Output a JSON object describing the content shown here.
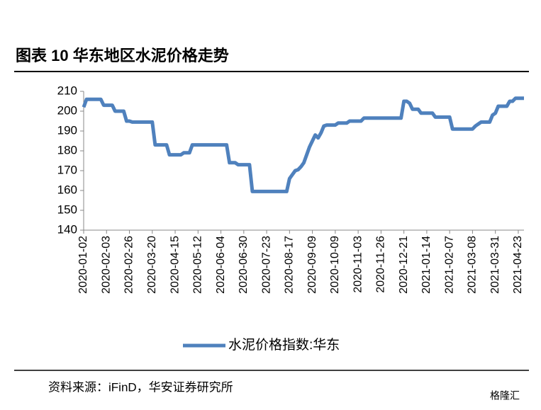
{
  "chart_data": {
    "type": "line",
    "title": "图表 10  华东地区水泥价格走势",
    "source": "资料来源：iFinD，华安证券研究所",
    "watermark": "格隆汇",
    "categories": [
      "2020-01-02",
      null,
      null,
      null,
      null,
      null,
      null,
      null,
      "2020-02-03",
      null,
      null,
      null,
      null,
      null,
      null,
      null,
      "2020-02-26",
      null,
      null,
      null,
      null,
      null,
      null,
      null,
      "2020-03-20",
      null,
      null,
      null,
      null,
      null,
      null,
      null,
      "2020-04-15",
      null,
      null,
      null,
      null,
      null,
      null,
      null,
      "2020-05-12",
      null,
      null,
      null,
      null,
      null,
      null,
      null,
      "2020-06-04",
      null,
      null,
      null,
      null,
      null,
      null,
      null,
      "2020-06-30",
      null,
      null,
      null,
      null,
      null,
      null,
      null,
      "2020-07-23",
      null,
      null,
      null,
      null,
      null,
      null,
      null,
      "2020-08-17",
      null,
      null,
      null,
      null,
      null,
      null,
      null,
      "2020-09-09",
      null,
      null,
      null,
      null,
      null,
      null,
      null,
      "2020-10-09",
      null,
      null,
      null,
      null,
      null,
      null,
      null,
      "2020-11-03",
      null,
      null,
      null,
      null,
      null,
      null,
      null,
      "2020-11-26",
      null,
      null,
      null,
      null,
      null,
      null,
      null,
      "2020-12-21",
      null,
      null,
      null,
      null,
      null,
      null,
      null,
      "2021-01-14",
      null,
      null,
      null,
      null,
      null,
      null,
      null,
      "2021-02-07",
      null,
      null,
      null,
      null,
      null,
      null,
      null,
      "2021-03-08",
      null,
      null,
      null,
      null,
      null,
      null,
      null,
      "2021-03-31",
      null,
      null,
      null,
      null,
      null,
      null,
      null,
      "2021-04-23",
      null,
      null
    ],
    "series": [
      {
        "name": "水泥价格指数:华东",
        "color": "#4f81bd",
        "values": [
          202,
          206,
          206,
          206,
          206,
          206,
          206,
          203,
          203,
          203,
          203,
          200,
          200,
          200,
          200,
          195,
          195,
          194.5,
          194.5,
          194.5,
          194.5,
          194.5,
          194.5,
          194.5,
          194.5,
          183,
          183,
          183,
          183,
          183,
          178,
          178,
          178,
          178,
          178,
          179,
          179,
          179,
          183,
          183,
          183,
          183,
          183,
          183,
          183,
          183,
          183,
          183,
          183,
          183,
          183,
          174,
          174,
          174,
          173,
          173,
          173,
          173,
          173,
          159.5,
          159.5,
          159.5,
          159.5,
          159.5,
          159.5,
          159.5,
          159.5,
          159.5,
          159.5,
          159.5,
          159.5,
          159.5,
          166,
          168,
          170,
          170.5,
          172,
          174,
          178,
          182,
          185,
          188,
          186.5,
          189,
          192.5,
          193,
          193,
          193,
          193,
          194,
          194,
          194,
          194,
          195,
          195,
          195,
          195,
          195,
          196.5,
          196.5,
          196.5,
          196.5,
          196.5,
          196.5,
          196.5,
          196.5,
          196.5,
          196.5,
          196.5,
          196.5,
          196.5,
          196.5,
          205,
          205,
          204,
          201,
          201,
          201,
          199,
          199,
          199,
          199,
          199,
          197,
          197,
          197,
          197,
          197,
          197,
          191,
          191,
          191,
          191,
          191,
          191,
          191,
          191,
          192.5,
          193.5,
          194.5,
          194.5,
          194.5,
          194.5,
          198,
          199,
          202.5,
          202.5,
          202.5,
          202.5,
          205,
          205,
          206.5,
          206.5,
          206.5,
          206.5
        ]
      }
    ],
    "ylim": [
      140,
      210
    ],
    "yticks": [
      140,
      150,
      160,
      170,
      180,
      190,
      200,
      210
    ],
    "legend": "bottom"
  }
}
